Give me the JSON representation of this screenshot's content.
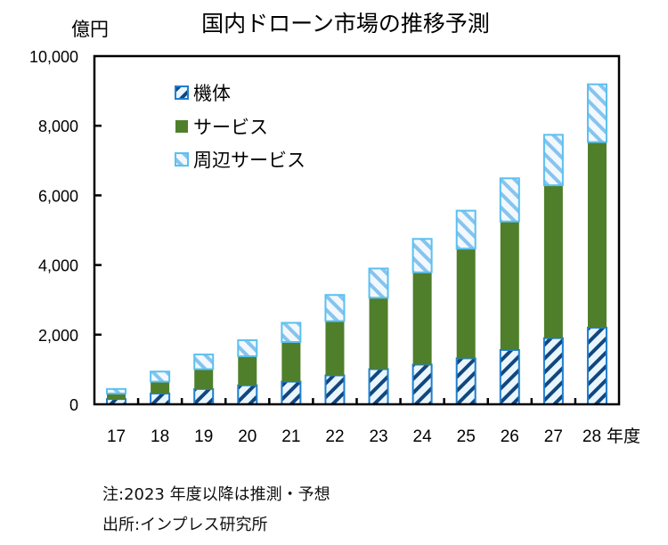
{
  "chart_data": {
    "type": "bar",
    "stacked": true,
    "title": "国内ドローン市場の推移予測",
    "ylabel": "億円",
    "xlabel": "年度",
    "ylim": [
      0,
      10000
    ],
    "yticks": [
      0,
      2000,
      4000,
      6000,
      8000,
      10000
    ],
    "ytick_labels": [
      "0",
      "2,000",
      "4,000",
      "6,000",
      "8,000",
      "10,000"
    ],
    "categories": [
      "17",
      "18",
      "19",
      "20",
      "21",
      "22",
      "23",
      "24",
      "25",
      "26",
      "27",
      "28"
    ],
    "legend_position": "top-left",
    "series": [
      {
        "name": "機体",
        "color": "#1f6fbf",
        "pattern": "hatch-dark-blue",
        "values": [
          150,
          310,
          440,
          545,
          650,
          830,
          1010,
          1140,
          1320,
          1560,
          1900,
          2200
        ]
      },
      {
        "name": "サービス",
        "color": "#4f7f2a",
        "pattern": "solid",
        "values": [
          160,
          340,
          570,
          835,
          1140,
          1560,
          2050,
          2650,
          3150,
          3690,
          4390,
          5330
        ]
      },
      {
        "name": "周辺サービス",
        "color": "#5bc0f0",
        "pattern": "hatch-light-blue",
        "values": [
          130,
          290,
          420,
          460,
          550,
          750,
          840,
          960,
          1090,
          1240,
          1450,
          1660
        ]
      }
    ]
  },
  "notes": {
    "note": "注:2023 年度以降は推測・予想",
    "source": "出所:インプレス研究所"
  }
}
